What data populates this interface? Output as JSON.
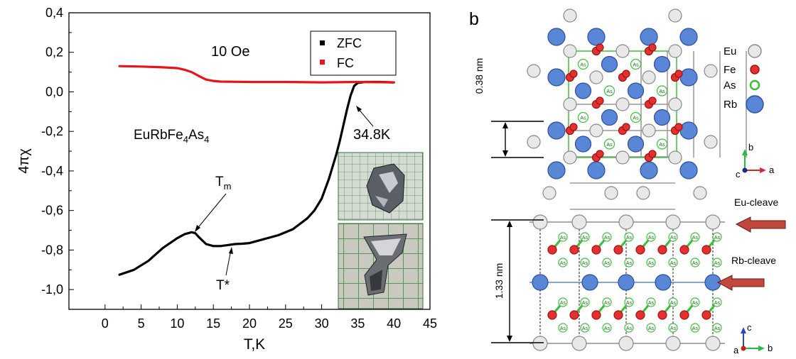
{
  "chart_data": {
    "type": "line",
    "xlabel": "T,K",
    "ylabel": "4πχ",
    "xlim": [
      -5,
      45
    ],
    "ylim": [
      -1.1,
      0.4
    ],
    "xticks": [
      "0",
      "5",
      "10",
      "15",
      "20",
      "25",
      "30",
      "35",
      "40",
      "45"
    ],
    "yticks": [
      "0,4",
      "0,2",
      "0,0",
      "-0,2",
      "-0,4",
      "-0,6",
      "-0,8",
      "-1,0"
    ],
    "legend_position": "top-right",
    "series": [
      {
        "name": "ZFC",
        "color": "#000000",
        "x": [
          2,
          4,
          6,
          8,
          10,
          11,
          12,
          12.5,
          13,
          14,
          15,
          16,
          17,
          18,
          19,
          20,
          22,
          24,
          26,
          28,
          29,
          30,
          31,
          32,
          32.5,
          33,
          33.5,
          34,
          34.5,
          35,
          36,
          38,
          40
        ],
        "y": [
          -0.925,
          -0.9,
          -0.855,
          -0.79,
          -0.74,
          -0.72,
          -0.71,
          -0.715,
          -0.735,
          -0.77,
          -0.78,
          -0.78,
          -0.775,
          -0.77,
          -0.768,
          -0.765,
          -0.745,
          -0.725,
          -0.695,
          -0.64,
          -0.6,
          -0.54,
          -0.44,
          -0.32,
          -0.25,
          -0.17,
          -0.09,
          -0.02,
          0.03,
          0.045,
          0.05,
          0.05,
          0.048
        ]
      },
      {
        "name": "FC",
        "color": "#e8141c",
        "x": [
          2,
          5,
          8,
          10,
          11,
          12,
          13,
          14,
          15,
          16,
          20,
          25,
          30,
          35,
          40
        ],
        "y": [
          0.13,
          0.128,
          0.124,
          0.12,
          0.112,
          0.1,
          0.08,
          0.062,
          0.055,
          0.052,
          0.05,
          0.05,
          0.048,
          0.05,
          0.048
        ]
      }
    ],
    "annotations": {
      "field": "10 Oe",
      "compound_main": "EuRbFe",
      "compound_sub1": "4",
      "compound_mid": "As",
      "compound_sub2": "4",
      "tc_label": "34.8K",
      "tm_main": "T",
      "tm_sub": "m",
      "tstar": "T*"
    }
  },
  "structure": {
    "panel_letter": "b",
    "legend": [
      {
        "label": "Eu",
        "fill": "#e8e8e8",
        "stroke": "#888888"
      },
      {
        "label": "Fe",
        "fill": "#e53030",
        "stroke": "#a01010"
      },
      {
        "label": "As",
        "fill": "#ffffff",
        "stroke": "#3bbf3b"
      },
      {
        "label": "Rb",
        "fill": "#5a86d8",
        "stroke": "#2a4f9c"
      }
    ],
    "atom_label": "As",
    "dim_top": "0.38 nm",
    "dim_bottom": "1.33 nm",
    "eu_cleave": "Eu-cleave",
    "rb_cleave": "Rb-cleave",
    "axis_top": {
      "x": "a",
      "y": "b",
      "z": "c"
    },
    "axis_bottom": {
      "x": "b",
      "y": "c",
      "z": "a"
    }
  }
}
